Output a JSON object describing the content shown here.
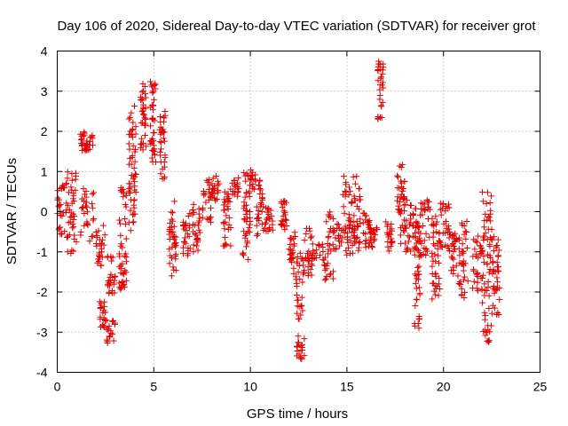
{
  "chart_data": {
    "type": "scatter",
    "title": "Day 106 of 2020, Sidereal Day-to-day VTEC variation (SDTVAR) for receiver grot",
    "xlabel": "GPS time / hours",
    "ylabel": "SDTVAR / TECUs",
    "xlim": [
      0,
      25
    ],
    "ylim": [
      -4,
      4
    ],
    "xticks": [
      0,
      5,
      10,
      15,
      20,
      25
    ],
    "yticks": [
      -4,
      -3,
      -2,
      -1,
      0,
      1,
      2,
      3,
      4
    ],
    "grid": true,
    "marker": "+",
    "marker_color": "#e00000",
    "clusters": [
      {
        "x": [
          0.0,
          0.5
        ],
        "y": [
          -0.6,
          0.8
        ]
      },
      {
        "x": [
          0.5,
          1.0
        ],
        "y": [
          -1.1,
          1.0
        ]
      },
      {
        "x": [
          1.2,
          1.5
        ],
        "y": [
          1.5,
          2.0
        ]
      },
      {
        "x": [
          1.5,
          1.9
        ],
        "y": [
          1.5,
          1.9
        ]
      },
      {
        "x": [
          1.2,
          1.9
        ],
        "y": [
          -0.8,
          0.6
        ]
      },
      {
        "x": [
          2.2,
          2.5
        ],
        "y": [
          -2.9,
          -2.2
        ]
      },
      {
        "x": [
          2.0,
          2.5
        ],
        "y": [
          -1.4,
          -0.3
        ]
      },
      {
        "x": [
          2.5,
          3.0
        ],
        "y": [
          -3.3,
          -2.7
        ]
      },
      {
        "x": [
          2.6,
          3.0
        ],
        "y": [
          -2.1,
          -1.1
        ]
      },
      {
        "x": [
          3.2,
          3.6
        ],
        "y": [
          -2.0,
          0.6
        ]
      },
      {
        "x": [
          3.7,
          4.1
        ],
        "y": [
          -0.5,
          2.7
        ]
      },
      {
        "x": [
          4.3,
          4.6
        ],
        "y": [
          1.5,
          3.2
        ]
      },
      {
        "x": [
          4.8,
          5.1
        ],
        "y": [
          1.2,
          3.4
        ]
      },
      {
        "x": [
          5.3,
          5.6
        ],
        "y": [
          0.8,
          2.5
        ]
      },
      {
        "x": [
          5.8,
          6.2
        ],
        "y": [
          -1.6,
          0.3
        ]
      },
      {
        "x": [
          6.5,
          6.9
        ],
        "y": [
          -1.1,
          0.0
        ]
      },
      {
        "x": [
          7.0,
          7.4
        ],
        "y": [
          -1.0,
          0.2
        ]
      },
      {
        "x": [
          7.5,
          8.0
        ],
        "y": [
          -0.3,
          0.8
        ]
      },
      {
        "x": [
          8.0,
          8.4
        ],
        "y": [
          0.2,
          0.9
        ]
      },
      {
        "x": [
          8.6,
          9.0
        ],
        "y": [
          -0.9,
          0.7
        ]
      },
      {
        "x": [
          9.0,
          9.4
        ],
        "y": [
          0.3,
          0.9
        ]
      },
      {
        "x": [
          9.6,
          10.0
        ],
        "y": [
          -1.3,
          1.0
        ]
      },
      {
        "x": [
          10.0,
          10.5
        ],
        "y": [
          0.5,
          1.1
        ]
      },
      {
        "x": [
          10.3,
          10.8
        ],
        "y": [
          -0.6,
          0.6
        ]
      },
      {
        "x": [
          10.8,
          11.2
        ],
        "y": [
          -0.5,
          0.1
        ]
      },
      {
        "x": [
          11.5,
          11.9
        ],
        "y": [
          -0.6,
          0.3
        ]
      },
      {
        "x": [
          12.0,
          12.4
        ],
        "y": [
          -1.8,
          -0.5
        ]
      },
      {
        "x": [
          12.4,
          12.8
        ],
        "y": [
          -3.7,
          -1.0
        ]
      },
      {
        "x": [
          12.8,
          13.2
        ],
        "y": [
          -1.6,
          -0.4
        ]
      },
      {
        "x": [
          13.2,
          13.8
        ],
        "y": [
          -1.2,
          -0.8
        ]
      },
      {
        "x": [
          13.8,
          14.3
        ],
        "y": [
          -1.7,
          0.0
        ]
      },
      {
        "x": [
          14.3,
          14.8
        ],
        "y": [
          -1.0,
          -0.3
        ]
      },
      {
        "x": [
          14.8,
          15.3
        ],
        "y": [
          -1.2,
          0.9
        ]
      },
      {
        "x": [
          15.3,
          15.7
        ],
        "y": [
          -1.0,
          0.9
        ]
      },
      {
        "x": [
          15.8,
          16.2
        ],
        "y": [
          -0.9,
          0.0
        ]
      },
      {
        "x": [
          16.2,
          16.6
        ],
        "y": [
          -0.9,
          -0.4
        ]
      },
      {
        "x": [
          16.6,
          16.9
        ],
        "y": [
          2.3,
          3.8
        ]
      },
      {
        "x": [
          17.0,
          17.4
        ],
        "y": [
          -1.0,
          -0.2
        ]
      },
      {
        "x": [
          17.6,
          18.0
        ],
        "y": [
          -0.9,
          1.2
        ]
      },
      {
        "x": [
          18.0,
          18.5
        ],
        "y": [
          -1.0,
          0.3
        ]
      },
      {
        "x": [
          18.5,
          18.8
        ],
        "y": [
          -2.9,
          0.1
        ]
      },
      {
        "x": [
          18.8,
          19.3
        ],
        "y": [
          -1.1,
          0.3
        ]
      },
      {
        "x": [
          19.4,
          19.8
        ],
        "y": [
          -2.3,
          -0.1
        ]
      },
      {
        "x": [
          19.8,
          20.3
        ],
        "y": [
          -1.0,
          0.3
        ]
      },
      {
        "x": [
          20.3,
          20.8
        ],
        "y": [
          -1.6,
          -0.5
        ]
      },
      {
        "x": [
          20.8,
          21.3
        ],
        "y": [
          -2.2,
          -0.2
        ]
      },
      {
        "x": [
          21.5,
          22.0
        ],
        "y": [
          -2.0,
          -0.6
        ]
      },
      {
        "x": [
          22.0,
          22.5
        ],
        "y": [
          -3.3,
          0.5
        ]
      },
      {
        "x": [
          22.5,
          22.9
        ],
        "y": [
          -2.6,
          -0.5
        ]
      }
    ]
  }
}
